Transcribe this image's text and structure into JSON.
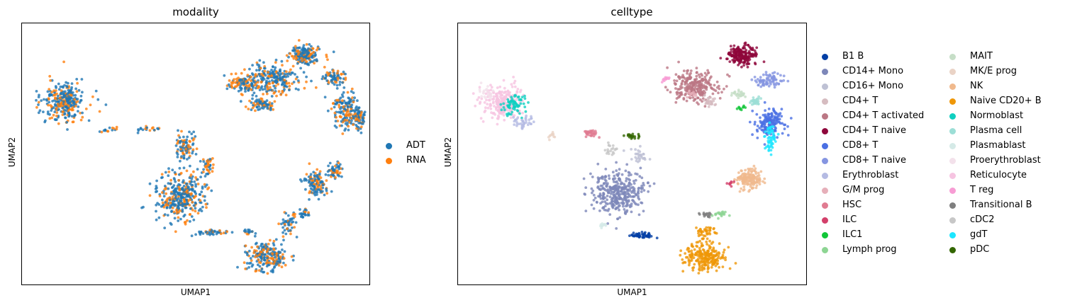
{
  "chart_data": [
    {
      "type": "scatter",
      "title": "modality",
      "xlabel": "UMAP1",
      "ylabel": "UMAP2",
      "grid": false,
      "ticks": false,
      "legend_position": "right",
      "legend": [
        {
          "name": "ADT",
          "color": "#1f77b4"
        },
        {
          "name": "RNA",
          "color": "#ff7f0e"
        }
      ]
    },
    {
      "type": "scatter",
      "title": "celltype",
      "xlabel": "UMAP1",
      "ylabel": "UMAP2",
      "grid": false,
      "ticks": false,
      "legend_position": "right",
      "legend": [
        {
          "name": "B1 B",
          "color": "#023fa5"
        },
        {
          "name": "CD14+ Mono",
          "color": "#7d87b9"
        },
        {
          "name": "CD16+ Mono",
          "color": "#bec1d4"
        },
        {
          "name": "CD4+ T",
          "color": "#d6bcc0"
        },
        {
          "name": "CD4+ T activated",
          "color": "#bb7784"
        },
        {
          "name": "CD4+ T naive",
          "color": "#8e063b"
        },
        {
          "name": "CD8+ T",
          "color": "#4a6fe3"
        },
        {
          "name": "CD8+ T naive",
          "color": "#8595e1"
        },
        {
          "name": "Erythroblast",
          "color": "#b5bbe3"
        },
        {
          "name": "G/M prog",
          "color": "#e6afb9"
        },
        {
          "name": "HSC",
          "color": "#e07b91"
        },
        {
          "name": "ILC",
          "color": "#d33f6a"
        },
        {
          "name": "ILC1",
          "color": "#11c638"
        },
        {
          "name": "Lymph prog",
          "color": "#8dd593"
        },
        {
          "name": "MAIT",
          "color": "#c6dec7"
        },
        {
          "name": "MK/E prog",
          "color": "#ead3c6"
        },
        {
          "name": "NK",
          "color": "#f0b98d"
        },
        {
          "name": "Naive CD20+ B",
          "color": "#ef9708"
        },
        {
          "name": "Normoblast",
          "color": "#0fcfc0"
        },
        {
          "name": "Plasma cell",
          "color": "#9cded6"
        },
        {
          "name": "Plasmablast",
          "color": "#d5eae7"
        },
        {
          "name": "Proerythroblast",
          "color": "#f3e1eb"
        },
        {
          "name": "Reticulocyte",
          "color": "#f6c4e1"
        },
        {
          "name": "T reg",
          "color": "#f79cd4"
        },
        {
          "name": "Transitional B",
          "color": "#7f7f7f"
        },
        {
          "name": "cDC2",
          "color": "#c7c7c7"
        },
        {
          "name": "gdT",
          "color": "#1ce6ff"
        },
        {
          "name": "pDC",
          "color": "#336600"
        }
      ]
    }
  ]
}
